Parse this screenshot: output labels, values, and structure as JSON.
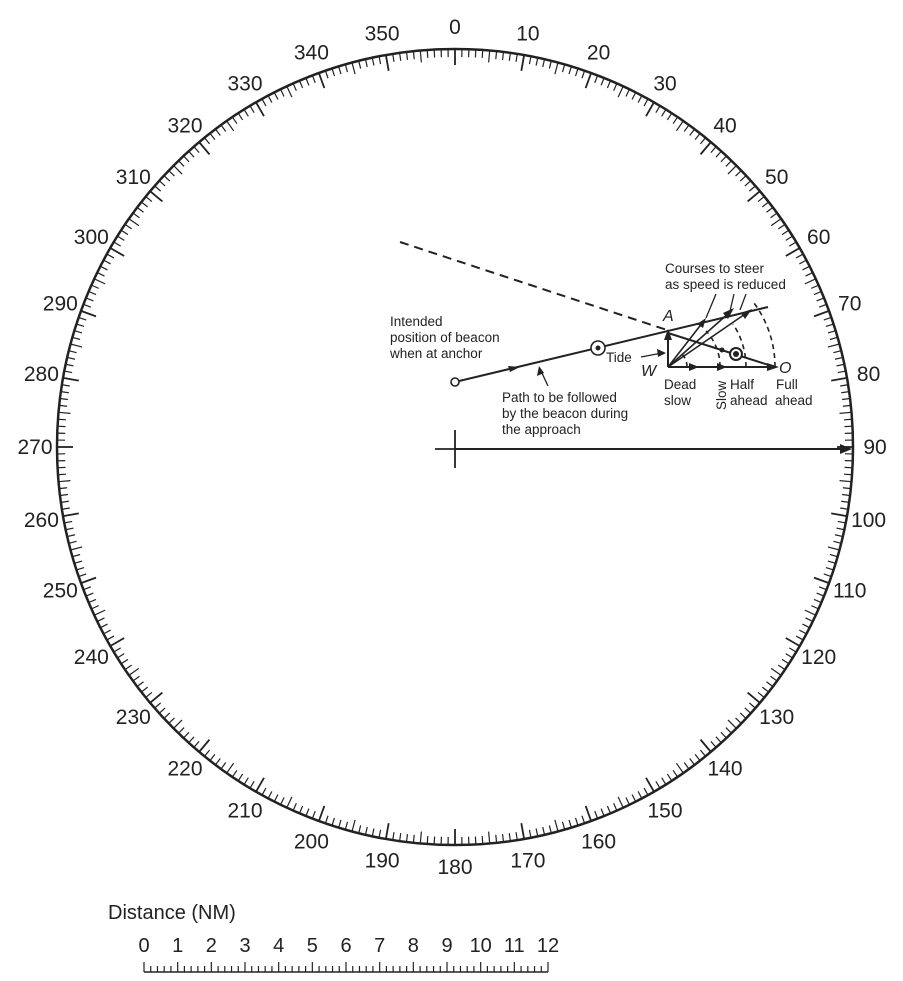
{
  "bearing_labels": [
    "0",
    "10",
    "20",
    "30",
    "40",
    "50",
    "60",
    "70",
    "80",
    "90",
    "100",
    "110",
    "120",
    "130",
    "140",
    "150",
    "160",
    "170",
    "180",
    "190",
    "200",
    "210",
    "220",
    "230",
    "240",
    "250",
    "260",
    "270",
    "280",
    "290",
    "300",
    "310",
    "320",
    "330",
    "340",
    "350"
  ],
  "scale": {
    "title": "Distance (NM)",
    "labels": [
      "0",
      "1",
      "2",
      "3",
      "4",
      "5",
      "6",
      "7",
      "8",
      "9",
      "10",
      "11",
      "12"
    ]
  },
  "annotations": {
    "intended_line1": "Intended",
    "intended_line2": "position of beacon",
    "intended_line3": "when at anchor",
    "path_line1": "Path to be followed",
    "path_line2": "by the beacon during",
    "path_line3": "the approach",
    "courses_line1": "Courses to steer",
    "courses_line2": "as speed is reduced",
    "tide": "Tide",
    "point_a": "A",
    "point_w": "W",
    "point_o": "O",
    "dead_line1": "Dead",
    "dead_line2": "slow",
    "slow": "Slow",
    "half_line1": "Half",
    "half_line2": "ahead",
    "full_line1": "Full",
    "full_line2": "ahead"
  }
}
